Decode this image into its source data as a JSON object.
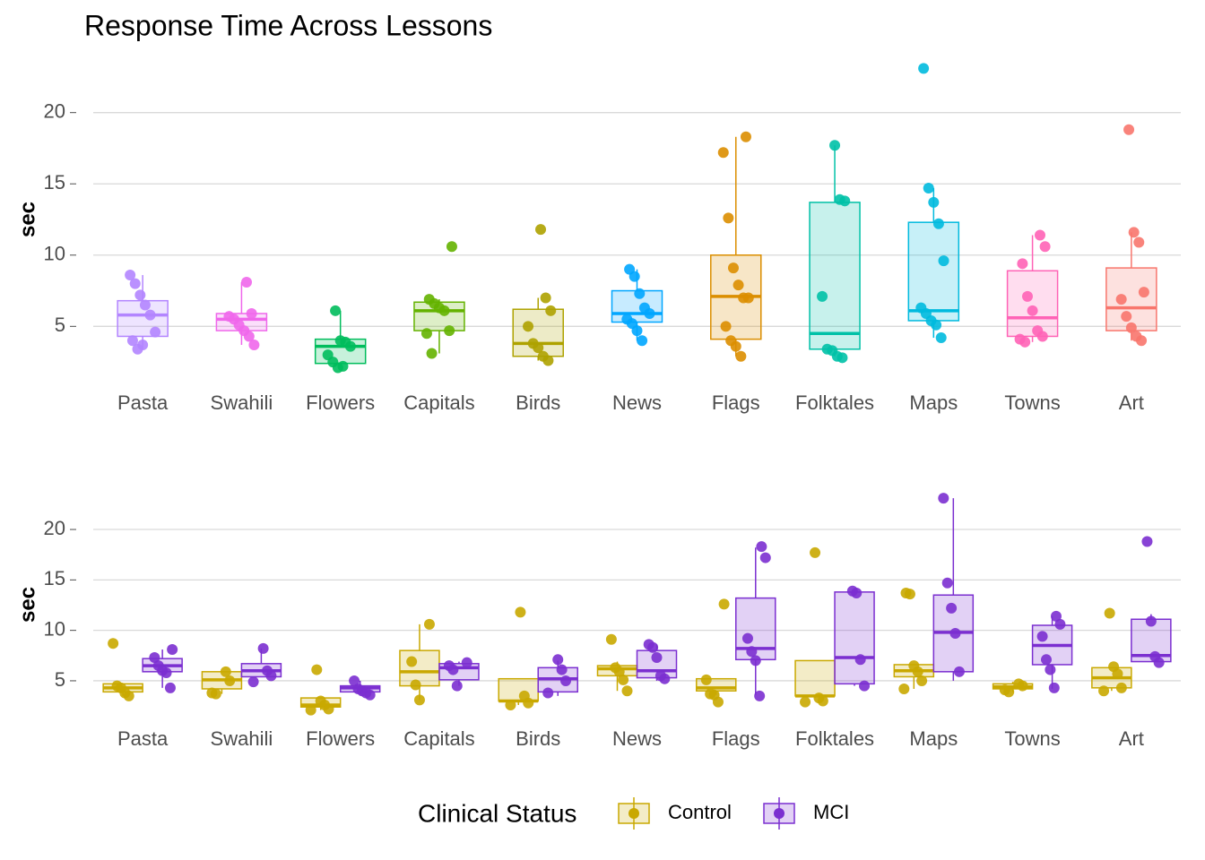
{
  "chart_data": [
    {
      "type": "box",
      "title": "Response Time Across Lessons",
      "y_label": "sec",
      "categories": [
        "Pasta",
        "Swahili",
        "Flowers",
        "Capitals",
        "Birds",
        "News",
        "Flags",
        "Folktales",
        "Maps",
        "Towns",
        "Art"
      ],
      "ylim": [
        1.5,
        23.5
      ],
      "yticks": [
        5,
        10,
        15,
        20
      ],
      "grid": true,
      "boxes": [
        {
          "color": "#B385FF",
          "min": 3.4,
          "q1": 4.3,
          "median": 5.8,
          "q3": 6.8,
          "max": 8.6,
          "points": [
            8.6,
            8.0,
            7.2,
            6.5,
            5.8,
            4.6,
            4.0,
            3.4,
            3.7
          ]
        },
        {
          "color": "#EF67EB",
          "min": 3.7,
          "q1": 4.7,
          "median": 5.5,
          "q3": 5.9,
          "max": 8.1,
          "points": [
            8.1,
            5.9,
            5.7,
            5.5,
            5.1,
            4.7,
            4.3,
            3.7
          ]
        },
        {
          "color": "#00BD5C",
          "min": 2.1,
          "q1": 2.4,
          "median": 3.6,
          "q3": 4.1,
          "max": 6.1,
          "points": [
            6.1,
            4.0,
            3.9,
            3.6,
            3.0,
            2.5,
            2.1,
            2.2
          ]
        },
        {
          "color": "#64B200",
          "min": 3.1,
          "q1": 4.7,
          "median": 6.1,
          "q3": 6.7,
          "max": 6.9,
          "points": [
            10.6,
            6.9,
            6.6,
            6.3,
            6.1,
            4.7,
            4.5,
            3.1
          ]
        },
        {
          "color": "#AEA200",
          "min": 2.6,
          "q1": 2.9,
          "median": 3.8,
          "q3": 6.2,
          "max": 7.0,
          "points": [
            11.8,
            7.0,
            6.1,
            5.0,
            3.8,
            3.5,
            2.9,
            2.6
          ]
        },
        {
          "color": "#00A6FF",
          "min": 4.0,
          "q1": 5.3,
          "median": 5.9,
          "q3": 7.5,
          "max": 9.0,
          "points": [
            9.0,
            8.5,
            7.3,
            6.3,
            5.9,
            5.5,
            5.2,
            4.7,
            4.0
          ]
        },
        {
          "color": "#DB8E00",
          "min": 2.9,
          "q1": 4.1,
          "median": 7.1,
          "q3": 10.0,
          "max": 18.3,
          "points": [
            18.3,
            17.2,
            12.6,
            9.1,
            7.9,
            7.0,
            7.0,
            5.0,
            4.0,
            3.6,
            2.9
          ]
        },
        {
          "color": "#00C1A7",
          "min": 2.9,
          "q1": 3.4,
          "median": 4.5,
          "q3": 13.7,
          "max": 17.7,
          "points": [
            17.7,
            13.9,
            13.8,
            7.1,
            3.4,
            3.3,
            2.9,
            2.8
          ]
        },
        {
          "color": "#00BADE",
          "min": 4.2,
          "q1": 5.4,
          "median": 6.1,
          "q3": 12.3,
          "max": 14.7,
          "points": [
            23.1,
            14.7,
            13.7,
            12.2,
            9.6,
            6.3,
            5.9,
            5.4,
            5.1,
            4.2
          ]
        },
        {
          "color": "#FF63B6",
          "min": 3.9,
          "q1": 4.3,
          "median": 5.6,
          "q3": 8.9,
          "max": 11.4,
          "points": [
            11.4,
            10.6,
            9.4,
            7.1,
            6.1,
            4.7,
            4.3,
            4.1,
            3.9
          ]
        },
        {
          "color": "#F8766D",
          "min": 4.0,
          "q1": 4.7,
          "median": 6.3,
          "q3": 9.1,
          "max": 11.6,
          "points": [
            18.8,
            11.6,
            10.9,
            7.4,
            6.9,
            5.7,
            4.9,
            4.3,
            4.0
          ]
        }
      ]
    },
    {
      "type": "grouped-box",
      "y_label": "sec",
      "legend_title": "Clinical Status",
      "categories": [
        "Pasta",
        "Swahili",
        "Flowers",
        "Capitals",
        "Birds",
        "News",
        "Flags",
        "Folktales",
        "Maps",
        "Towns",
        "Art"
      ],
      "ylim": [
        1,
        23.2
      ],
      "yticks": [
        5,
        10,
        15,
        20
      ],
      "grid": true,
      "series": [
        {
          "name": "Control",
          "color": "#C9A800",
          "boxes": [
            {
              "min": 3.5,
              "q1": 3.9,
              "median": 4.3,
              "q3": 4.7,
              "max": 4.7,
              "points": [
                8.7,
                4.5,
                4.3,
                3.8,
                3.5
              ]
            },
            {
              "min": 3.7,
              "q1": 4.2,
              "median": 5.1,
              "q3": 5.9,
              "max": 5.9,
              "points": [
                5.9,
                5.0,
                3.8,
                3.7
              ]
            },
            {
              "min": 2.1,
              "q1": 2.4,
              "median": 2.6,
              "q3": 3.3,
              "max": 3.3,
              "points": [
                6.1,
                3.0,
                2.6,
                2.2,
                2.1
              ]
            },
            {
              "min": 3.1,
              "q1": 4.5,
              "median": 5.9,
              "q3": 8.0,
              "max": 10.6,
              "points": [
                10.6,
                6.9,
                4.6,
                3.1
              ]
            },
            {
              "min": 2.6,
              "q1": 3.0,
              "median": 3.0,
              "q3": 5.2,
              "max": 5.2,
              "points": [
                11.8,
                3.5,
                2.8,
                2.6
              ]
            },
            {
              "min": 4.0,
              "q1": 5.5,
              "median": 6.2,
              "q3": 6.5,
              "max": 6.9,
              "points": [
                9.1,
                6.3,
                5.9,
                5.1,
                4.0
              ]
            },
            {
              "min": 3.6,
              "q1": 4.0,
              "median": 4.3,
              "q3": 5.2,
              "max": 5.2,
              "points": [
                12.6,
                5.1,
                3.7,
                3.6,
                2.9
              ]
            },
            {
              "min": 3.3,
              "q1": 3.5,
              "median": 3.5,
              "q3": 7.0,
              "max": 7.0,
              "points": [
                17.7,
                3.3,
                3.0,
                2.9
              ]
            },
            {
              "min": 4.2,
              "q1": 5.4,
              "median": 6.0,
              "q3": 6.6,
              "max": 6.6,
              "points": [
                13.7,
                13.6,
                6.5,
                5.9,
                5.0,
                4.2
              ]
            },
            {
              "min": 3.9,
              "q1": 4.2,
              "median": 4.4,
              "q3": 4.7,
              "max": 4.9,
              "points": [
                4.7,
                4.5,
                4.1,
                3.9
              ]
            },
            {
              "min": 4.0,
              "q1": 4.3,
              "median": 5.3,
              "q3": 6.3,
              "max": 6.3,
              "points": [
                11.7,
                6.4,
                5.7,
                4.3,
                4.0
              ]
            }
          ]
        },
        {
          "name": "MCI",
          "color": "#7B2FD0",
          "boxes": [
            {
              "min": 4.3,
              "q1": 5.9,
              "median": 6.5,
              "q3": 7.2,
              "max": 8.1,
              "points": [
                8.1,
                7.3,
                6.5,
                6.0,
                5.8,
                4.3
              ]
            },
            {
              "min": 5.4,
              "q1": 5.4,
              "median": 6.0,
              "q3": 6.7,
              "max": 8.2,
              "points": [
                8.2,
                6.0,
                5.5,
                4.9
              ]
            },
            {
              "min": 3.6,
              "q1": 3.9,
              "median": 4.3,
              "q3": 4.5,
              "max": 5.0,
              "points": [
                5.0,
                4.2,
                4.0,
                3.8,
                3.6
              ]
            },
            {
              "min": 4.5,
              "q1": 5.1,
              "median": 6.3,
              "q3": 6.7,
              "max": 6.9,
              "points": [
                6.8,
                6.5,
                6.1,
                4.5
              ]
            },
            {
              "min": 3.5,
              "q1": 3.9,
              "median": 5.2,
              "q3": 6.3,
              "max": 7.0,
              "points": [
                7.1,
                6.1,
                5.0,
                3.8
              ]
            },
            {
              "min": 5.0,
              "q1": 5.3,
              "median": 6.0,
              "q3": 8.0,
              "max": 8.6,
              "points": [
                8.6,
                8.3,
                7.3,
                5.5,
                5.2
              ]
            },
            {
              "min": 3.6,
              "q1": 7.1,
              "median": 8.2,
              "q3": 13.2,
              "max": 18.2,
              "points": [
                18.3,
                17.2,
                9.2,
                7.9,
                7.0,
                3.5
              ]
            },
            {
              "min": 4.5,
              "q1": 4.7,
              "median": 7.3,
              "q3": 13.8,
              "max": 14.0,
              "points": [
                13.9,
                13.7,
                7.1,
                4.5
              ]
            },
            {
              "min": 5.0,
              "q1": 5.9,
              "median": 9.8,
              "q3": 13.5,
              "max": 23.1,
              "points": [
                23.1,
                14.7,
                12.2,
                9.7,
                5.9
              ]
            },
            {
              "min": 4.2,
              "q1": 6.6,
              "median": 8.5,
              "q3": 10.5,
              "max": 11.4,
              "points": [
                11.4,
                10.6,
                9.4,
                7.1,
                6.1,
                4.3
              ]
            },
            {
              "min": 6.9,
              "q1": 6.9,
              "median": 7.5,
              "q3": 11.1,
              "max": 11.6,
              "points": [
                18.8,
                10.9,
                7.4,
                6.8
              ]
            }
          ]
        }
      ]
    }
  ]
}
